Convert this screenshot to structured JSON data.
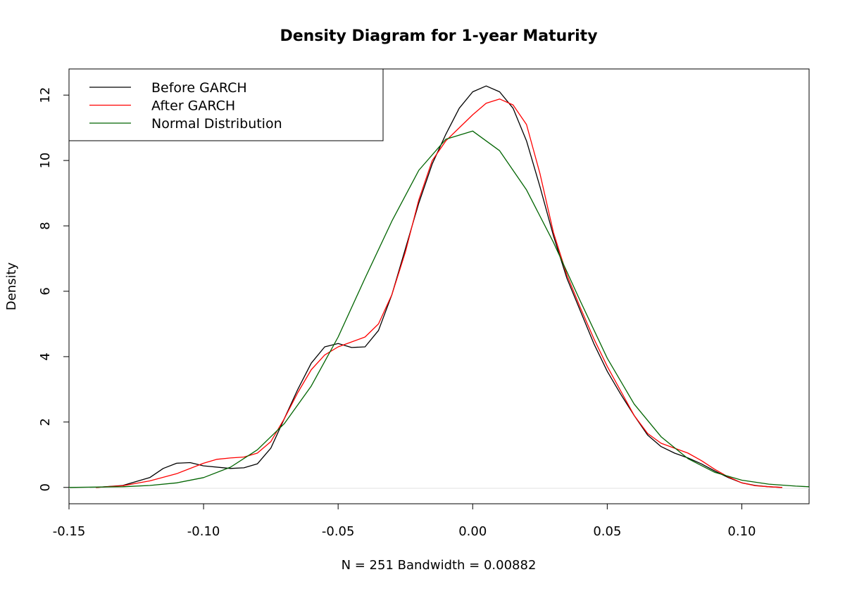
{
  "chart_data": {
    "type": "line",
    "title": "Density Diagram for 1-year Maturity",
    "xlabel": "N = 251   Bandwidth = 0.00882",
    "ylabel": "Density",
    "xlim": [
      -0.15,
      0.125
    ],
    "ylim": [
      -0.5,
      12.8
    ],
    "x_ticks": [
      -0.15,
      -0.1,
      -0.05,
      0.0,
      0.05,
      0.1
    ],
    "x_tick_labels": [
      "-0.15",
      "-0.10",
      "-0.05",
      "0.00",
      "0.05",
      "0.10"
    ],
    "y_ticks": [
      0,
      2,
      4,
      6,
      8,
      10,
      12
    ],
    "y_tick_labels": [
      "0",
      "2",
      "4",
      "6",
      "8",
      "10",
      "12"
    ],
    "grid": false,
    "legend_position": "top-left",
    "series": [
      {
        "name": "Before GARCH",
        "color": "#000000",
        "points": [
          [
            -0.14,
            0.0
          ],
          [
            -0.13,
            0.06
          ],
          [
            -0.12,
            0.3
          ],
          [
            -0.115,
            0.58
          ],
          [
            -0.11,
            0.74
          ],
          [
            -0.105,
            0.76
          ],
          [
            -0.1,
            0.66
          ],
          [
            -0.09,
            0.58
          ],
          [
            -0.085,
            0.6
          ],
          [
            -0.08,
            0.72
          ],
          [
            -0.075,
            1.2
          ],
          [
            -0.07,
            2.1
          ],
          [
            -0.065,
            3.0
          ],
          [
            -0.06,
            3.8
          ],
          [
            -0.055,
            4.3
          ],
          [
            -0.05,
            4.4
          ],
          [
            -0.045,
            4.28
          ],
          [
            -0.04,
            4.3
          ],
          [
            -0.035,
            4.8
          ],
          [
            -0.03,
            5.9
          ],
          [
            -0.025,
            7.3
          ],
          [
            -0.02,
            8.7
          ],
          [
            -0.015,
            9.9
          ],
          [
            -0.01,
            10.8
          ],
          [
            -0.005,
            11.6
          ],
          [
            0.0,
            12.1
          ],
          [
            0.005,
            12.28
          ],
          [
            0.01,
            12.1
          ],
          [
            0.015,
            11.6
          ],
          [
            0.02,
            10.6
          ],
          [
            0.025,
            9.2
          ],
          [
            0.03,
            7.7
          ],
          [
            0.035,
            6.4
          ],
          [
            0.04,
            5.4
          ],
          [
            0.045,
            4.4
          ],
          [
            0.05,
            3.55
          ],
          [
            0.055,
            2.85
          ],
          [
            0.06,
            2.2
          ],
          [
            0.065,
            1.6
          ],
          [
            0.07,
            1.25
          ],
          [
            0.075,
            1.05
          ],
          [
            0.08,
            0.9
          ],
          [
            0.085,
            0.72
          ],
          [
            0.09,
            0.5
          ],
          [
            0.095,
            0.3
          ],
          [
            0.1,
            0.14
          ],
          [
            0.105,
            0.06
          ],
          [
            0.11,
            0.02
          ],
          [
            0.115,
            0.0
          ]
        ]
      },
      {
        "name": "After GARCH",
        "color": "#ff0000",
        "points": [
          [
            -0.14,
            0.0
          ],
          [
            -0.13,
            0.05
          ],
          [
            -0.12,
            0.2
          ],
          [
            -0.11,
            0.42
          ],
          [
            -0.1,
            0.74
          ],
          [
            -0.095,
            0.86
          ],
          [
            -0.09,
            0.9
          ],
          [
            -0.085,
            0.93
          ],
          [
            -0.08,
            1.05
          ],
          [
            -0.075,
            1.4
          ],
          [
            -0.07,
            2.1
          ],
          [
            -0.065,
            2.9
          ],
          [
            -0.06,
            3.6
          ],
          [
            -0.055,
            4.05
          ],
          [
            -0.05,
            4.3
          ],
          [
            -0.045,
            4.45
          ],
          [
            -0.04,
            4.6
          ],
          [
            -0.035,
            5.0
          ],
          [
            -0.03,
            5.9
          ],
          [
            -0.025,
            7.2
          ],
          [
            -0.02,
            8.8
          ],
          [
            -0.015,
            10.0
          ],
          [
            -0.01,
            10.6
          ],
          [
            -0.005,
            11.0
          ],
          [
            0.0,
            11.4
          ],
          [
            0.005,
            11.75
          ],
          [
            0.01,
            11.88
          ],
          [
            0.015,
            11.7
          ],
          [
            0.02,
            11.1
          ],
          [
            0.025,
            9.6
          ],
          [
            0.03,
            7.8
          ],
          [
            0.035,
            6.5
          ],
          [
            0.04,
            5.5
          ],
          [
            0.045,
            4.55
          ],
          [
            0.05,
            3.7
          ],
          [
            0.055,
            2.95
          ],
          [
            0.06,
            2.2
          ],
          [
            0.065,
            1.65
          ],
          [
            0.07,
            1.35
          ],
          [
            0.075,
            1.2
          ],
          [
            0.08,
            1.05
          ],
          [
            0.085,
            0.82
          ],
          [
            0.09,
            0.55
          ],
          [
            0.095,
            0.32
          ],
          [
            0.1,
            0.14
          ],
          [
            0.105,
            0.05
          ],
          [
            0.11,
            0.02
          ],
          [
            0.115,
            0.0
          ]
        ]
      },
      {
        "name": "Normal Distribution",
        "color": "#006400",
        "points": [
          [
            -0.15,
            0.0
          ],
          [
            -0.14,
            0.01
          ],
          [
            -0.13,
            0.02
          ],
          [
            -0.12,
            0.06
          ],
          [
            -0.11,
            0.14
          ],
          [
            -0.1,
            0.3
          ],
          [
            -0.09,
            0.62
          ],
          [
            -0.08,
            1.15
          ],
          [
            -0.07,
            1.95
          ],
          [
            -0.06,
            3.1
          ],
          [
            -0.05,
            4.6
          ],
          [
            -0.04,
            6.4
          ],
          [
            -0.03,
            8.15
          ],
          [
            -0.02,
            9.7
          ],
          [
            -0.01,
            10.65
          ],
          [
            0.0,
            10.9
          ],
          [
            0.01,
            10.3
          ],
          [
            0.02,
            9.1
          ],
          [
            0.03,
            7.5
          ],
          [
            0.04,
            5.7
          ],
          [
            0.05,
            3.95
          ],
          [
            0.06,
            2.55
          ],
          [
            0.07,
            1.55
          ],
          [
            0.08,
            0.88
          ],
          [
            0.09,
            0.46
          ],
          [
            0.1,
            0.22
          ],
          [
            0.11,
            0.1
          ],
          [
            0.12,
            0.04
          ],
          [
            0.125,
            0.02
          ]
        ]
      }
    ]
  }
}
